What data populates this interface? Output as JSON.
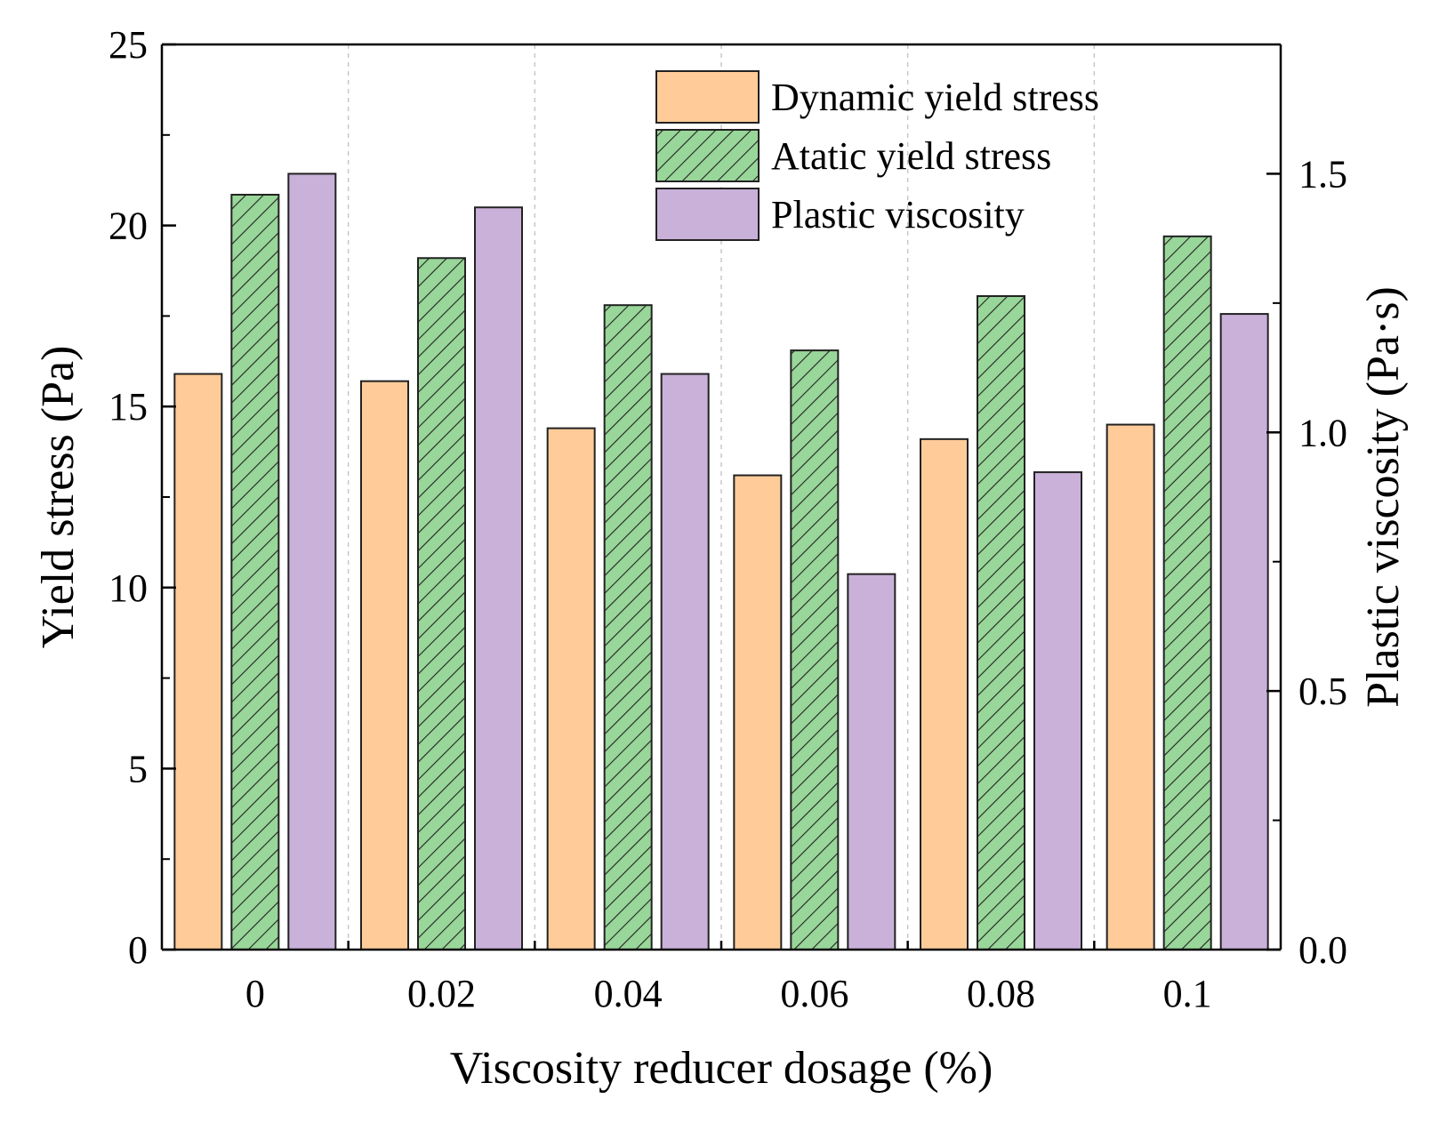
{
  "chart_data": {
    "type": "bar",
    "title": "",
    "xlabel": "Viscosity reducer dosage (%)",
    "ylabel": "Yield stress (Pa)",
    "ylabel_right": "Plastic viscosity (Pa·s)",
    "categories": [
      "0",
      "0.02",
      "0.04",
      "0.06",
      "0.08",
      "0.1"
    ],
    "ylim": [
      0,
      25
    ],
    "ylim_right": [
      0,
      1.75
    ],
    "yticks": [
      "0",
      "5",
      "10",
      "15",
      "20",
      "25"
    ],
    "yticks_right": [
      "0.0",
      "0.5",
      "1.0",
      "1.5"
    ],
    "grid": "vertical dashed separators between categories",
    "legend_position": "top-right",
    "series": [
      {
        "name": "Dynamic yield stress",
        "axis": "left",
        "color": "#FFCC99",
        "pattern": "solid",
        "values": [
          15.9,
          15.7,
          14.4,
          13.1,
          14.1,
          14.5
        ]
      },
      {
        "name": "Atatic yield stress",
        "axis": "left",
        "color": "#99D699",
        "pattern": "hatch",
        "values": [
          20.85,
          19.1,
          17.8,
          16.55,
          18.05,
          19.7
        ]
      },
      {
        "name": "Plastic viscosity",
        "axis": "right",
        "color": "#C9B1D9",
        "pattern": "solid",
        "values": [
          1.5,
          1.435,
          1.113,
          0.726,
          0.923,
          1.229
        ]
      }
    ]
  }
}
